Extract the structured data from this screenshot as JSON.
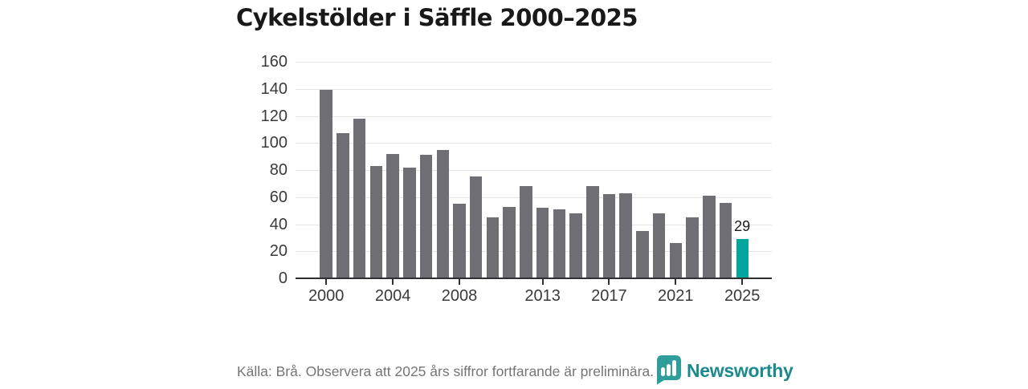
{
  "page": {
    "source_note": "Källa: Brå. Observera att 2025 års siffror fortfarande är preliminära.",
    "brand": "Newsworthy",
    "brand_color": "#1b8a8f",
    "brand_icon": "speech-bubble-bar-chart-icon",
    "background_color": "#ffffff"
  },
  "chart_data": {
    "type": "bar",
    "title": "Cykelstölder i Säffle 2000–2025",
    "x": [
      2000,
      2001,
      2002,
      2003,
      2004,
      2005,
      2006,
      2007,
      2008,
      2009,
      2010,
      2011,
      2012,
      2013,
      2014,
      2015,
      2016,
      2017,
      2018,
      2019,
      2020,
      2021,
      2022,
      2023,
      2024,
      2025
    ],
    "values": [
      139,
      107,
      118,
      83,
      92,
      82,
      91,
      95,
      55,
      75,
      45,
      53,
      68,
      52,
      51,
      48,
      68,
      62,
      63,
      35,
      48,
      26,
      45,
      61,
      56,
      29
    ],
    "bar_color": "#6e6e74",
    "highlight_index": 25,
    "highlight_color": "#00a59c",
    "highlight_label": "29",
    "xlabel": "",
    "ylabel": "",
    "ylim": [
      0,
      160
    ],
    "ytick_step": 20,
    "xtick_years": [
      2000,
      2004,
      2008,
      2013,
      2017,
      2021,
      2025
    ],
    "grid": true,
    "legend": null
  }
}
